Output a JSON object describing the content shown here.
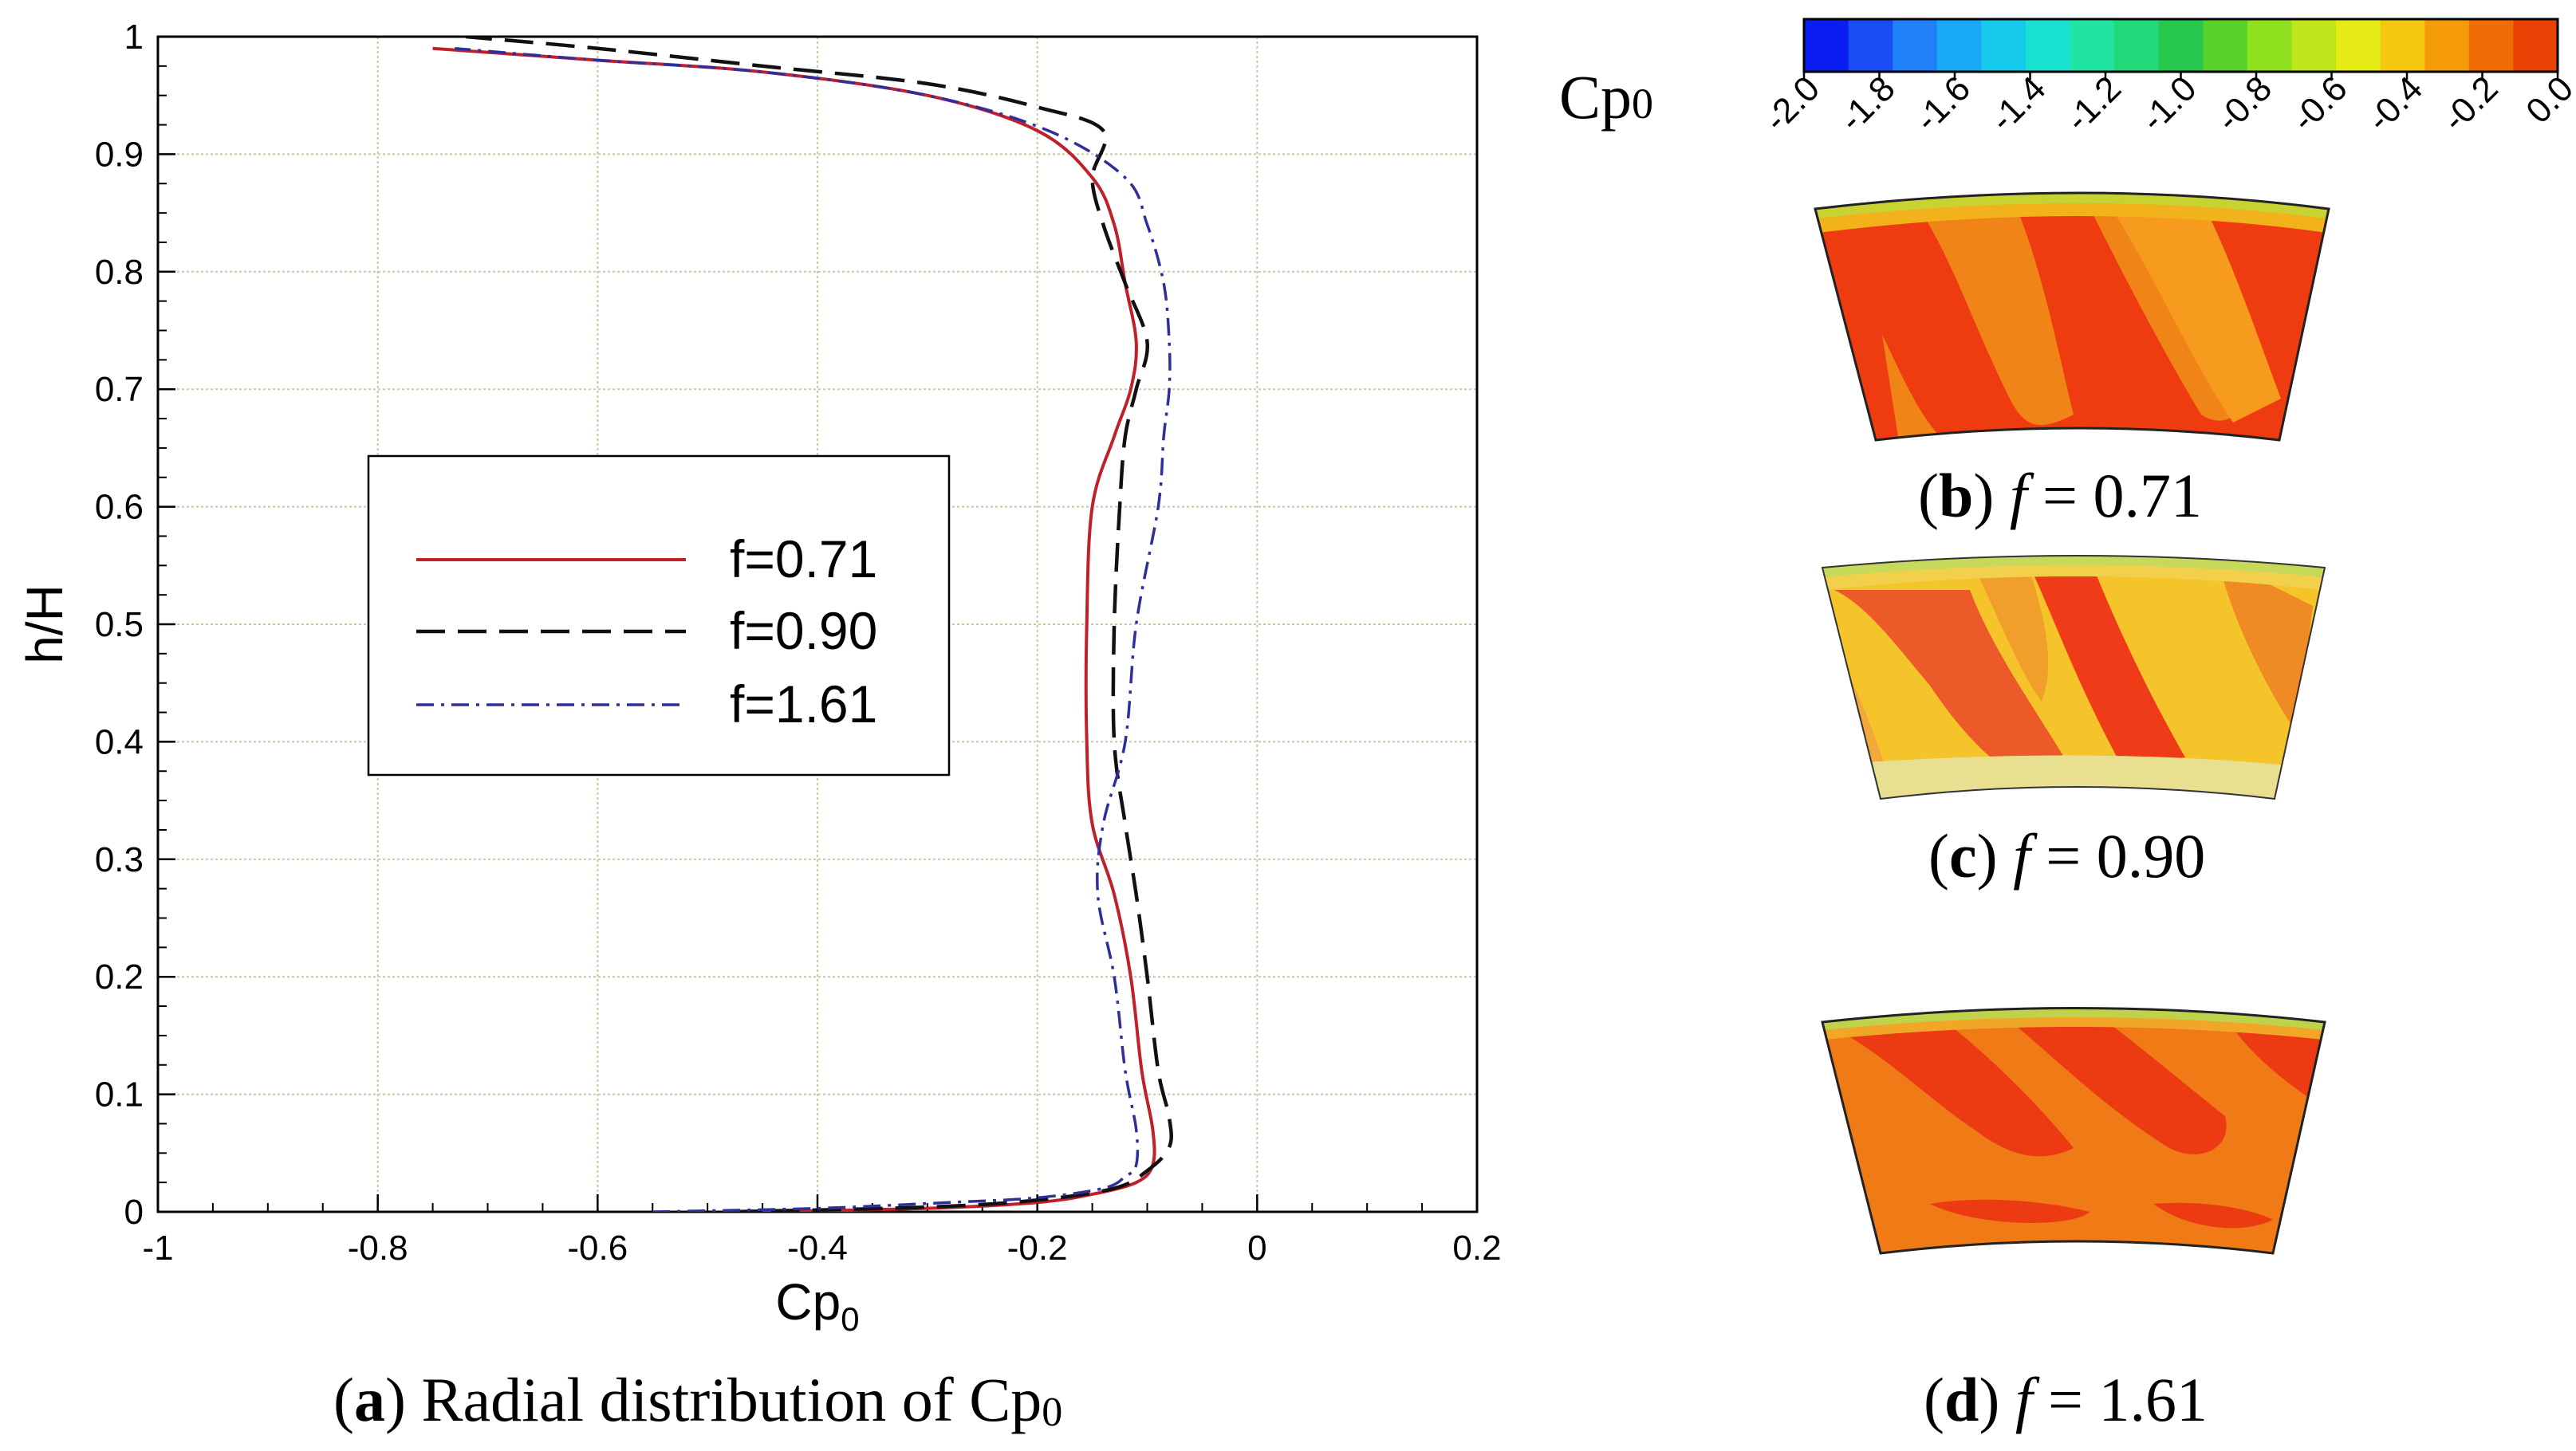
{
  "chart_data": [
    {
      "type": "line",
      "title": "",
      "xlabel": "Cp",
      "xlabel_sub": "0",
      "ylabel": "h/H",
      "xlim": [
        -1,
        0.2
      ],
      "ylim": [
        0,
        1
      ],
      "xticks": [
        "-1",
        "-0.8",
        "-0.6",
        "-0.4",
        "-0.2",
        "0",
        "0.2"
      ],
      "yticks": [
        "0",
        "0.1",
        "0.2",
        "0.3",
        "0.4",
        "0.5",
        "0.6",
        "0.7",
        "0.8",
        "0.9",
        "1"
      ],
      "grid": true,
      "legend_position": "center-left",
      "series": [
        {
          "name": "f=0.71",
          "color": "#c0202a",
          "dash": "solid",
          "points": [
            [
              -0.45,
              0.0
            ],
            [
              -0.3,
              0.003
            ],
            [
              -0.2,
              0.008
            ],
            [
              -0.15,
              0.015
            ],
            [
              -0.11,
              0.025
            ],
            [
              -0.095,
              0.04
            ],
            [
              -0.095,
              0.07
            ],
            [
              -0.105,
              0.12
            ],
            [
              -0.115,
              0.2
            ],
            [
              -0.13,
              0.27
            ],
            [
              -0.15,
              0.33
            ],
            [
              -0.155,
              0.4
            ],
            [
              -0.155,
              0.5
            ],
            [
              -0.15,
              0.6
            ],
            [
              -0.13,
              0.66
            ],
            [
              -0.115,
              0.7
            ],
            [
              -0.11,
              0.74
            ],
            [
              -0.12,
              0.79
            ],
            [
              -0.13,
              0.84
            ],
            [
              -0.15,
              0.88
            ],
            [
              -0.2,
              0.92
            ],
            [
              -0.3,
              0.95
            ],
            [
              -0.45,
              0.97
            ],
            [
              -0.6,
              0.98
            ],
            [
              -0.75,
              0.99
            ]
          ]
        },
        {
          "name": "f=0.90",
          "color": "#111111",
          "dash": "long-dash",
          "points": [
            [
              -0.48,
              0.0
            ],
            [
              -0.3,
              0.004
            ],
            [
              -0.2,
              0.01
            ],
            [
              -0.13,
              0.02
            ],
            [
              -0.1,
              0.035
            ],
            [
              -0.08,
              0.055
            ],
            [
              -0.08,
              0.08
            ],
            [
              -0.09,
              0.12
            ],
            [
              -0.1,
              0.2
            ],
            [
              -0.11,
              0.27
            ],
            [
              -0.12,
              0.33
            ],
            [
              -0.13,
              0.4
            ],
            [
              -0.13,
              0.5
            ],
            [
              -0.125,
              0.6
            ],
            [
              -0.12,
              0.66
            ],
            [
              -0.11,
              0.7
            ],
            [
              -0.1,
              0.74
            ],
            [
              -0.12,
              0.79
            ],
            [
              -0.14,
              0.84
            ],
            [
              -0.15,
              0.88
            ],
            [
              -0.14,
              0.92
            ],
            [
              -0.2,
              0.94
            ],
            [
              -0.3,
              0.96
            ],
            [
              -0.45,
              0.975
            ],
            [
              -0.6,
              0.99
            ],
            [
              -0.72,
              1.0
            ]
          ]
        },
        {
          "name": "f=1.61",
          "color": "#2f2f9c",
          "dash": "dash-dot",
          "points": [
            [
              -0.55,
              0.0
            ],
            [
              -0.4,
              0.003
            ],
            [
              -0.28,
              0.008
            ],
            [
              -0.2,
              0.012
            ],
            [
              -0.14,
              0.02
            ],
            [
              -0.12,
              0.03
            ],
            [
              -0.11,
              0.04
            ],
            [
              -0.11,
              0.07
            ],
            [
              -0.12,
              0.12
            ],
            [
              -0.13,
              0.2
            ],
            [
              -0.145,
              0.27
            ],
            [
              -0.14,
              0.33
            ],
            [
              -0.12,
              0.4
            ],
            [
              -0.11,
              0.5
            ],
            [
              -0.09,
              0.6
            ],
            [
              -0.085,
              0.66
            ],
            [
              -0.08,
              0.7
            ],
            [
              -0.08,
              0.74
            ],
            [
              -0.085,
              0.79
            ],
            [
              -0.1,
              0.84
            ],
            [
              -0.12,
              0.88
            ],
            [
              -0.19,
              0.92
            ],
            [
              -0.3,
              0.95
            ],
            [
              -0.45,
              0.97
            ],
            [
              -0.6,
              0.98
            ],
            [
              -0.73,
              0.99
            ]
          ]
        }
      ]
    },
    {
      "type": "heatmap",
      "title": "Cp",
      "title_sub": "0",
      "colorbar_ticks": [
        "-2.0",
        "-1.8",
        "-1.6",
        "-1.4",
        "-1.2",
        "-1.0",
        "-0.8",
        "-0.6",
        "-0.4",
        "-0.2",
        "0.0"
      ],
      "colorbar_colors": [
        "#0a1ef2",
        "#1a4cf5",
        "#2080f7",
        "#18a8f4",
        "#16c9ec",
        "#18e2cf",
        "#1fe4a4",
        "#23d879",
        "#27c74e",
        "#58d12a",
        "#8fe11f",
        "#bde51a",
        "#e6ea15",
        "#f5c810",
        "#f59b0a",
        "#f06d06",
        "#e94004"
      ],
      "panels": [
        {
          "id": "b",
          "f": 0.71
        },
        {
          "id": "c",
          "f": 0.9
        },
        {
          "id": "d",
          "f": 1.61
        }
      ]
    }
  ],
  "captions": {
    "a": {
      "label": "a",
      "text": " Radial distribution of Cp",
      "sub": "0"
    },
    "b": {
      "label": "b",
      "f": "f",
      "text": " = 0.71"
    },
    "c": {
      "label": "c",
      "f": "f",
      "text": " = 0.90"
    },
    "d": {
      "label": "d",
      "f": "f",
      "text": " = 1.61"
    }
  }
}
